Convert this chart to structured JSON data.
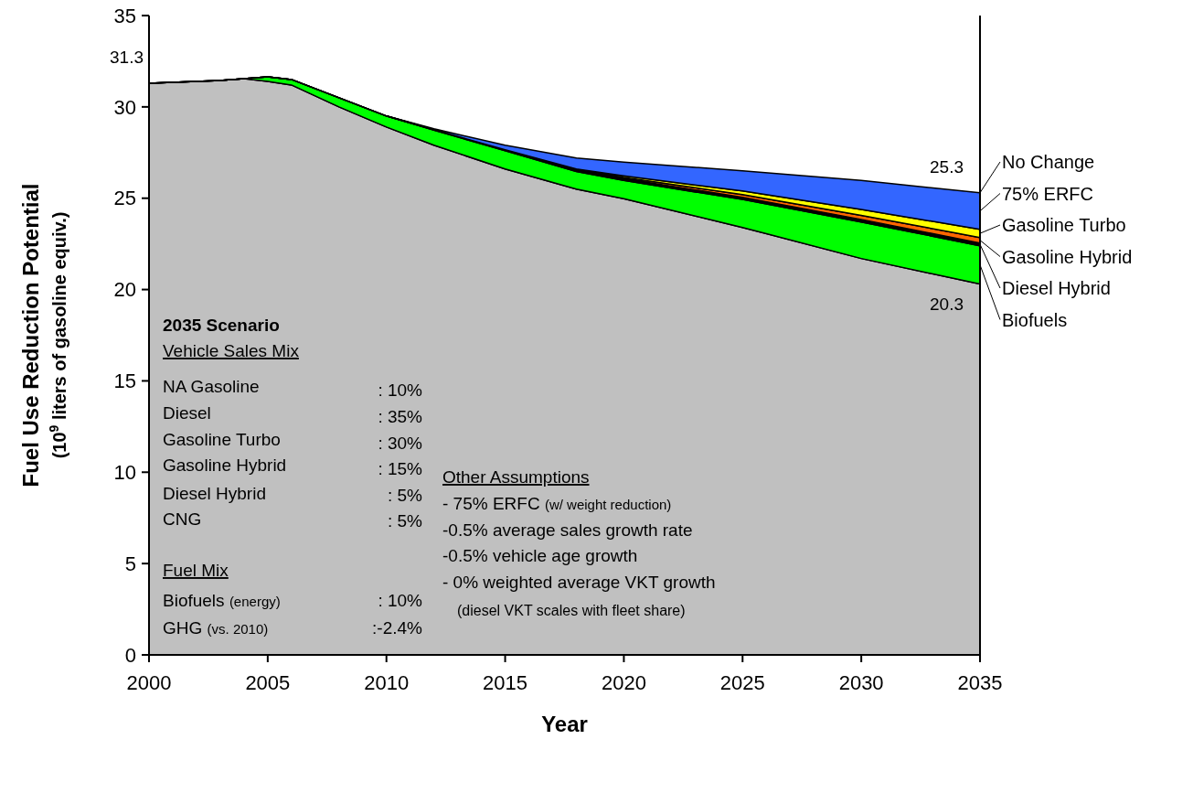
{
  "chart_data": {
    "type": "area",
    "stacked": true,
    "legend": "right",
    "xlabel": "Year",
    "ylabel": "Fuel Use Reduction Potential\n(10$^{9}$ liters of gasoline equiv.)",
    "x": [
      2000,
      2003,
      2004,
      2005,
      2006,
      2008,
      2010,
      2012,
      2015,
      2018,
      2020,
      2025,
      2030,
      2035
    ],
    "xlim": [
      2000,
      2035
    ],
    "xticks": [
      2000,
      2005,
      2010,
      2015,
      2020,
      2025,
      2030,
      2035
    ],
    "ylim": [
      0,
      35
    ],
    "yticks": [
      0,
      5,
      10,
      15,
      20,
      25,
      30,
      35
    ],
    "series": [
      {
        "color": "#c0c0c0",
        "values": [
          31.3,
          31.45,
          31.55,
          31.4,
          31.2,
          30.0,
          28.9,
          27.9,
          26.6,
          25.5,
          24.97,
          23.4,
          21.7,
          20.3
        ]
      },
      {
        "name": "Biofuels",
        "color": "#00ff00",
        "values": [
          0,
          0,
          0,
          0.25,
          0.3,
          0.5,
          0.6,
          0.83,
          1.0,
          0.96,
          1.0,
          1.53,
          2.0,
          2.1
        ]
      },
      {
        "name": "Diesel Hybrid",
        "color": "#000000",
        "values": [
          0,
          0,
          0,
          0,
          0,
          0,
          0,
          0.02,
          0.05,
          0.08,
          0.1,
          0.12,
          0.14,
          0.15
        ]
      },
      {
        "name": "Gasoline Hybrid",
        "color": "#ff6600",
        "values": [
          0,
          0,
          0,
          0,
          0,
          0,
          0,
          0,
          0,
          0.03,
          0.07,
          0.15,
          0.22,
          0.3
        ]
      },
      {
        "name": "Gasoline Turbo",
        "color": "#ffff00",
        "values": [
          0,
          0,
          0,
          0,
          0,
          0,
          0,
          0,
          0,
          0.03,
          0.08,
          0.2,
          0.32,
          0.45
        ]
      },
      {
        "name": "75% ERFC",
        "color": "#3366ff",
        "values": [
          0,
          0,
          0,
          0,
          0,
          0,
          0,
          0.05,
          0.25,
          0.6,
          0.75,
          1.1,
          1.59,
          2.0
        ]
      }
    ],
    "annotations": [
      "No Change",
      "31.3",
      "25.3",
      "20.3",
      "2035 Scenario",
      "Vehicle Sales Mix",
      "NA Gasoline",
      ": 10%",
      "Diesel",
      ": 35%",
      "Gasoline Turbo",
      ": 30%",
      "Gasoline Hybrid",
      ": 15%",
      "Diesel Hybrid",
      ":   5%",
      "CNG",
      ":   5%",
      "Fuel Mix",
      "Biofuels (energy)",
      ": 10%",
      "GHG (vs. 2010)",
      ":-2.4%",
      "Other Assumptions",
      "- 75% ERFC (w/ weight reduction)",
      "-0.5% average sales growth rate",
      "-0.5% vehicle age growth",
      "-   0% weighted average VKT growth",
      "(diesel VKT scales with fleet share)"
    ]
  }
}
